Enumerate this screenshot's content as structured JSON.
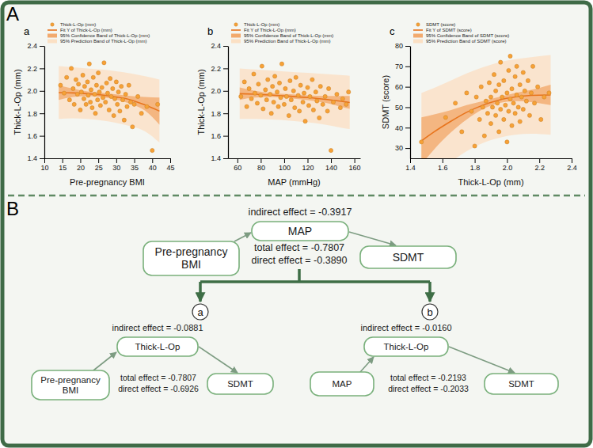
{
  "panel_labels": [
    "A",
    "B"
  ],
  "chart_data": [
    {
      "type": "scatter",
      "label": "a",
      "x_label": "Pre-pregnancy BMI",
      "y_label": "Thick-L-Op (mm)",
      "xlim": [
        10,
        45
      ],
      "xticks": [
        10,
        15,
        20,
        25,
        30,
        35,
        40,
        45
      ],
      "ylim": [
        1.4,
        2.4
      ],
      "yticks": [
        1.4,
        1.6,
        1.8,
        {
          "value": 2,
          "label": "2.0"
        },
        2.2,
        2.4
      ],
      "legend": "top",
      "series": [
        {
          "name": "Thick-L-Op (mm)",
          "type": "scatter",
          "marker": "circle",
          "color": "#f7a136",
          "x": [
            14.5,
            15.5,
            16.2,
            17,
            17.5,
            18,
            18.3,
            18.8,
            19.2,
            19.5,
            20,
            20.3,
            20.7,
            21,
            21.2,
            21.6,
            22,
            22.2,
            22.5,
            22.8,
            23,
            23.3,
            23.6,
            24,
            24.2,
            24.5,
            24.8,
            25,
            25.3,
            25.6,
            26,
            26.3,
            26.6,
            27,
            27.3,
            27.6,
            28,
            28.3,
            28.6,
            29,
            29.3,
            29.6,
            30,
            30.3,
            30.6,
            31,
            31.4,
            31.8,
            32.2,
            32.6,
            33,
            33.5,
            34,
            34.5,
            35,
            36,
            37,
            38.5,
            40,
            41.5
          ],
          "values": [
            2.05,
            1.98,
            2.12,
            1.92,
            2.2,
            2.02,
            1.88,
            2.1,
            1.97,
            2.06,
            1.83,
            1.99,
            2.14,
            1.93,
            2.04,
            1.88,
            2.08,
            1.96,
            2.24,
            1.9,
            2.01,
            1.85,
            2.12,
            1.97,
            1.8,
            2.05,
            1.92,
            2.16,
            1.99,
            1.87,
            2.03,
            1.94,
            2.25,
            1.9,
            2.07,
            1.98,
            1.83,
            2.11,
            1.95,
            2.02,
            1.78,
            1.93,
            2.08,
            1.88,
            1.99,
            1.82,
            2.04,
            1.92,
            1.74,
            1.97,
            1.86,
            2.05,
            1.9,
            1.68,
            1.88,
            1.95,
            1.8,
            1.86,
            1.47,
            1.88
          ]
        },
        {
          "name": "Fit Y of Thick-L-Op (mm)",
          "type": "line",
          "color": "#e8741c",
          "x": [
            14,
            18,
            22,
            26,
            30,
            34,
            38,
            42
          ],
          "values": [
            1.985,
            1.982,
            1.975,
            1.963,
            1.945,
            1.92,
            1.875,
            1.82
          ]
        },
        {
          "name": "95% Confidence Band of Thick-L-Op (mm)",
          "type": "band",
          "color": "#f2aa6e",
          "x": [
            14,
            18,
            22,
            26,
            30,
            34,
            38,
            42
          ],
          "lower": [
            1.92,
            1.945,
            1.955,
            1.944,
            1.922,
            1.885,
            1.825,
            1.7
          ],
          "upper": [
            2.05,
            2.02,
            1.995,
            1.982,
            1.968,
            1.955,
            1.945,
            1.94
          ]
        },
        {
          "name": "95% Prediction Band of Thick-L-Op (mm)",
          "type": "band",
          "color": "#fbe0c4",
          "x": [
            14,
            18,
            22,
            26,
            30,
            34,
            38,
            42
          ],
          "lower": [
            1.75,
            1.755,
            1.75,
            1.736,
            1.715,
            1.685,
            1.64,
            1.54
          ],
          "upper": [
            2.22,
            2.21,
            2.2,
            2.19,
            2.175,
            2.155,
            2.13,
            2.1
          ]
        }
      ]
    },
    {
      "type": "scatter",
      "label": "b",
      "x_label": "MAP (mmHg)",
      "y_label": "Thick-L-Op (mm)",
      "xlim": [
        52,
        165
      ],
      "xticks": [
        60,
        80,
        100,
        120,
        140,
        160
      ],
      "ylim": [
        1.4,
        2.4
      ],
      "yticks": [
        1.4,
        1.6,
        1.8,
        {
          "value": 2,
          "label": "2.0"
        },
        2.2,
        2.4
      ],
      "legend": "top",
      "series": [
        {
          "name": "Thick-L-Op (mm)",
          "type": "scatter",
          "marker": "circle",
          "color": "#f7a136",
          "x": [
            63,
            66,
            68,
            70,
            72,
            74,
            75,
            77,
            78,
            80,
            81,
            82,
            84,
            85,
            86,
            88,
            89,
            90,
            91,
            92,
            94,
            95,
            96,
            97,
            98,
            100,
            101,
            102,
            104,
            105,
            106,
            108,
            109,
            110,
            112,
            113,
            114,
            116,
            117,
            118,
            120,
            121,
            122,
            124,
            125,
            127,
            128,
            130,
            131,
            133,
            135,
            137,
            138,
            140,
            142,
            145,
            148,
            150,
            153,
            155
          ],
          "values": [
            1.95,
            2.08,
            1.86,
            2.02,
            1.93,
            2.15,
            1.98,
            1.89,
            2.06,
            1.96,
            2.22,
            1.84,
            2.01,
            1.92,
            2.1,
            1.97,
            1.8,
            2.04,
            1.9,
            2.13,
            1.99,
            1.86,
            2.07,
            1.94,
            2.24,
            1.88,
            2.02,
            1.95,
            1.78,
            2.09,
            1.92,
            2,
            1.85,
            2.12,
            1.96,
            1.82,
            2.05,
            1.9,
            1.98,
            1.73,
            2.03,
            1.87,
            1.95,
            2.1,
            1.83,
            1.99,
            1.91,
            1.76,
            2.04,
            1.88,
            1.95,
            1.82,
            2.02,
            1.47,
            1.9,
            1.97,
            1.85,
            1.93,
            1.88,
            1.99
          ]
        },
        {
          "name": "Fit Y of Thick-L-Op (mm)",
          "type": "line",
          "color": "#e8741c",
          "x": [
            62,
            75,
            90,
            105,
            120,
            135,
            150,
            156
          ],
          "values": [
            1.975,
            1.97,
            1.962,
            1.952,
            1.94,
            1.925,
            1.905,
            1.897
          ]
        },
        {
          "name": "95% Confidence Band of Thick-L-Op (mm)",
          "type": "band",
          "color": "#f2aa6e",
          "x": [
            62,
            75,
            90,
            105,
            120,
            135,
            150,
            156
          ],
          "lower": [
            1.92,
            1.94,
            1.945,
            1.934,
            1.918,
            1.895,
            1.855,
            1.84
          ],
          "upper": [
            2.03,
            2,
            1.98,
            1.97,
            1.96,
            1.955,
            1.955,
            1.955
          ]
        },
        {
          "name": "95% Prediction Band of Thick-L-Op (mm)",
          "type": "band",
          "color": "#fbe0c4",
          "x": [
            62,
            75,
            90,
            105,
            120,
            135,
            150,
            156
          ],
          "lower": [
            1.75,
            1.75,
            1.745,
            1.735,
            1.72,
            1.7,
            1.67,
            1.66
          ],
          "upper": [
            2.2,
            2.19,
            2.18,
            2.17,
            2.16,
            2.15,
            2.14,
            2.135
          ]
        }
      ]
    },
    {
      "type": "scatter",
      "label": "c",
      "x_label": "Thick-L-Op (mm)",
      "y_label": "SDMT (score)",
      "xlim": [
        1.4,
        2.4
      ],
      "xticks": [
        1.4,
        1.6,
        1.8,
        {
          "value": 2,
          "label": "2.0"
        },
        2.2,
        2.4
      ],
      "ylim": [
        25,
        80
      ],
      "yticks": [
        30,
        40,
        50,
        60,
        70,
        80
      ],
      "legend": "top",
      "series": [
        {
          "name": "SDMT (score)",
          "type": "scatter",
          "marker": "circle",
          "color": "#f7a136",
          "x": [
            1.47,
            1.62,
            1.68,
            1.72,
            1.75,
            1.78,
            1.8,
            1.81,
            1.83,
            1.84,
            1.85,
            1.86,
            1.87,
            1.88,
            1.89,
            1.9,
            1.9,
            1.91,
            1.92,
            1.93,
            1.93,
            1.94,
            1.95,
            1.95,
            1.96,
            1.96,
            1.97,
            1.98,
            1.98,
            1.99,
            2,
            2,
            2.01,
            2.01,
            2.02,
            2.02,
            2.03,
            2.03,
            2.04,
            2.05,
            2.05,
            2.06,
            2.06,
            2.07,
            2.08,
            2.08,
            2.09,
            2.1,
            2.1,
            2.11,
            2.12,
            2.13,
            2.14,
            2.15,
            2.16,
            2.17,
            2.19,
            2.21,
            2.23,
            2.26
          ],
          "values": [
            33,
            45,
            52,
            38,
            57,
            48,
            31,
            55,
            44,
            60,
            50,
            36,
            53,
            47,
            62,
            42,
            55,
            50,
            66,
            46,
            58,
            52,
            38,
            61,
            49,
            72,
            55,
            44,
            63,
            51,
            57,
            33,
            68,
            48,
            54,
            75,
            59,
            41,
            52,
            65,
            47,
            56,
            70,
            50,
            61,
            43,
            55,
            67,
            49,
            58,
            53,
            63,
            46,
            57,
            70,
            52,
            60,
            44,
            55,
            57
          ]
        },
        {
          "name": "Fit Y of SDMT (score)",
          "type": "line",
          "color": "#e8741c",
          "x": [
            1.47,
            1.55,
            1.65,
            1.75,
            1.85,
            1.95,
            2.05,
            2.15,
            2.27
          ],
          "values": [
            33.5,
            38,
            43,
            47.5,
            51,
            53.5,
            55,
            55.8,
            56
          ]
        },
        {
          "name": "95% Confidence Band of SDMT (score)",
          "type": "band",
          "color": "#f2aa6e",
          "x": [
            1.47,
            1.55,
            1.65,
            1.75,
            1.85,
            1.95,
            2.05,
            2.15,
            2.27
          ],
          "lower": [
            22,
            29.5,
            37.5,
            44,
            49,
            52,
            53,
            52.5,
            51
          ],
          "upper": [
            45,
            46.5,
            48.5,
            51,
            53,
            55,
            57,
            58.5,
            61
          ]
        },
        {
          "name": "95% Prediction Band of SDMT (score)",
          "type": "band",
          "color": "#fbe0c4",
          "x": [
            1.47,
            1.55,
            1.65,
            1.75,
            1.85,
            1.95,
            2.05,
            2.15,
            2.27
          ],
          "lower": [
            10,
            16.5,
            23,
            28.5,
            32.5,
            35,
            36.5,
            37,
            36.5
          ],
          "upper": [
            57,
            59.5,
            63,
            66.5,
            69.5,
            72,
            73.5,
            74.5,
            75.5
          ]
        }
      ]
    }
  ],
  "diagram": {
    "main": {
      "indirect_effect": "indirect effect = -0.3917",
      "total_effect": "total effect = -0.7807",
      "direct_effect": "direct effect = -0.3890",
      "nodes": {
        "x": "Pre-pregnancy BMI",
        "mediator": "MAP",
        "y": "SDMT"
      }
    },
    "sub": [
      {
        "label": "a",
        "indirect_effect": "indirect effect = -0.0881",
        "total_effect": "total effect = -0.7807",
        "direct_effect": "direct effect = -0.6926",
        "nodes": {
          "x": "Pre-pregnancy BMI",
          "mediator": "Thick-L-Op",
          "y": "SDMT"
        }
      },
      {
        "label": "b",
        "indirect_effect": "indirect effect = -0.0160",
        "total_effect": "total effect = -0.2193",
        "direct_effect": "direct effect = -0.2033",
        "nodes": {
          "x": "MAP",
          "mediator": "Thick-L-Op",
          "y": "SDMT"
        }
      }
    ]
  }
}
